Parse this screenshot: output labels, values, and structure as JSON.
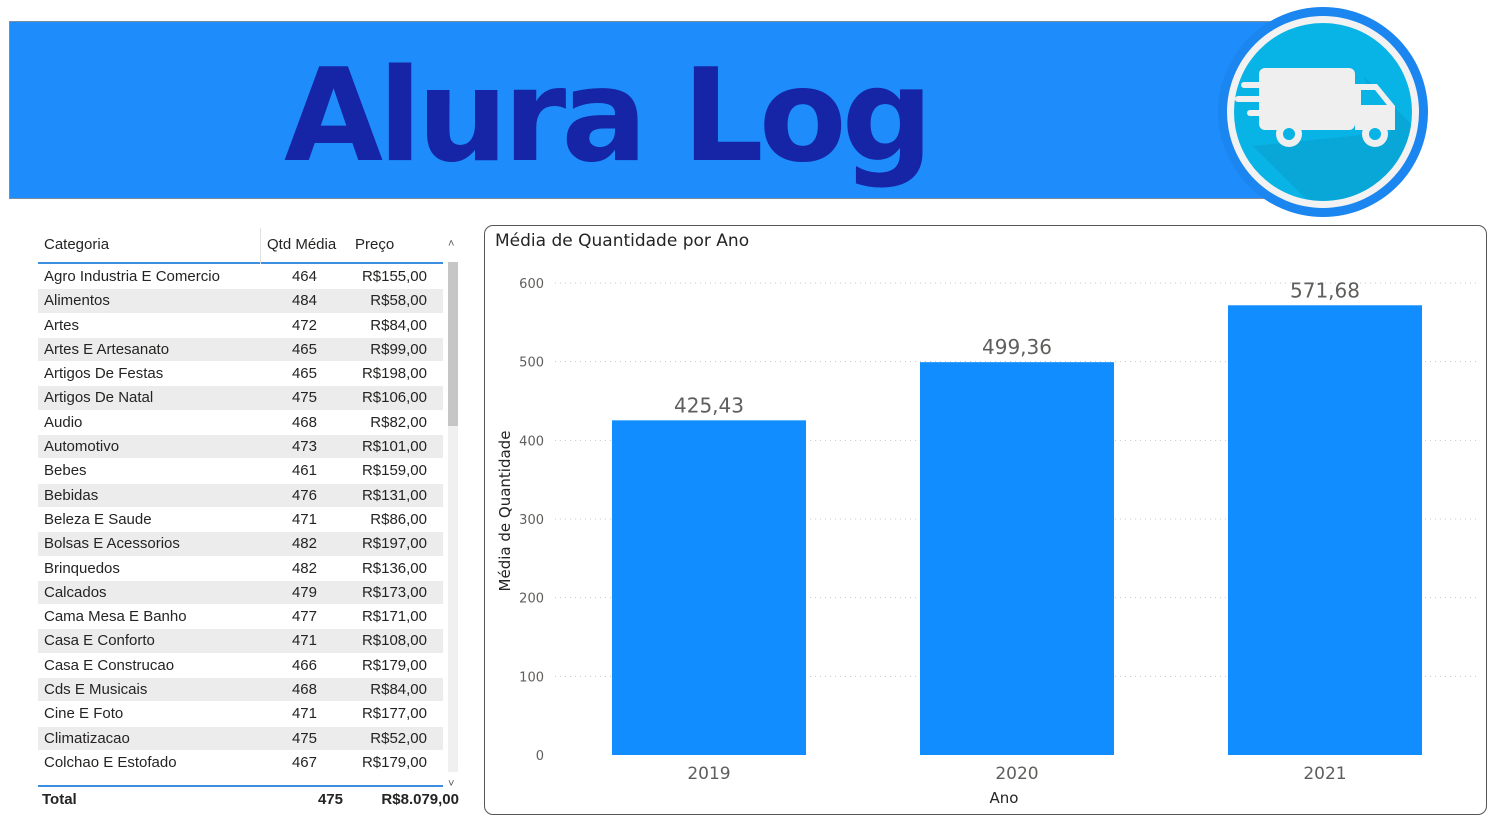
{
  "header": {
    "title": "Alura Log",
    "logo_icon": "delivery-truck-icon",
    "colors": {
      "banner": "#1e8dfb",
      "title": "#1525a5",
      "logo_ring": "#1b86f0",
      "logo_inner": "#08b4e6"
    }
  },
  "table": {
    "columns": [
      "Categoria",
      "Qtd Média",
      "Preço"
    ],
    "rows": [
      [
        "Agro Industria E Comercio",
        "464",
        "R$155,00"
      ],
      [
        "Alimentos",
        "484",
        "R$58,00"
      ],
      [
        "Artes",
        "472",
        "R$84,00"
      ],
      [
        "Artes E Artesanato",
        "465",
        "R$99,00"
      ],
      [
        "Artigos De Festas",
        "465",
        "R$198,00"
      ],
      [
        "Artigos De Natal",
        "475",
        "R$106,00"
      ],
      [
        "Audio",
        "468",
        "R$82,00"
      ],
      [
        "Automotivo",
        "473",
        "R$101,00"
      ],
      [
        "Bebes",
        "461",
        "R$159,00"
      ],
      [
        "Bebidas",
        "476",
        "R$131,00"
      ],
      [
        "Beleza E Saude",
        "471",
        "R$86,00"
      ],
      [
        "Bolsas E Acessorios",
        "482",
        "R$197,00"
      ],
      [
        "Brinquedos",
        "482",
        "R$136,00"
      ],
      [
        "Calcados",
        "479",
        "R$173,00"
      ],
      [
        "Cama Mesa E Banho",
        "477",
        "R$171,00"
      ],
      [
        "Casa E Conforto",
        "471",
        "R$108,00"
      ],
      [
        "Casa E Construcao",
        "466",
        "R$179,00"
      ],
      [
        "Cds E Musicais",
        "468",
        "R$84,00"
      ],
      [
        "Cine E Foto",
        "471",
        "R$177,00"
      ],
      [
        "Climatizacao",
        "475",
        "R$52,00"
      ],
      [
        "Colchao E Estofado",
        "467",
        "R$179,00"
      ]
    ],
    "total": {
      "label": "Total",
      "qtd": "475",
      "preco": "R$8.079,00"
    },
    "scroll_up_icon": "chevron-up-icon",
    "scroll_down_icon": "chevron-down-icon"
  },
  "chart_data": {
    "type": "bar",
    "title": "Média de Quantidade por Ano",
    "xlabel": "Ano",
    "ylabel": "Média de Quantidade",
    "categories": [
      "2019",
      "2020",
      "2021"
    ],
    "values": [
      425.43,
      499.36,
      571.68
    ],
    "data_labels": [
      "425,43",
      "499,36",
      "571,68"
    ],
    "ylim": [
      0,
      600
    ],
    "yticks": [
      0,
      100,
      200,
      300,
      400,
      500,
      600
    ],
    "grid": true,
    "bar_color": "#118dff"
  }
}
